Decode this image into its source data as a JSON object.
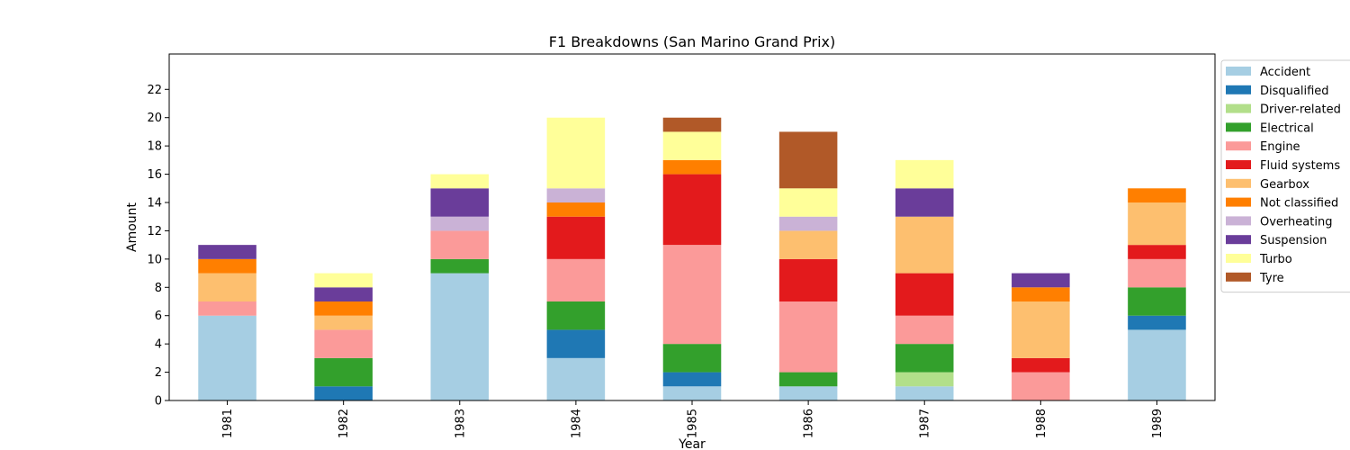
{
  "chart_data": {
    "type": "bar",
    "stacked": true,
    "title": "F1 Breakdowns (San Marino Grand Prix)",
    "xlabel": "Year",
    "ylabel": "Amount",
    "ylim": [
      0,
      24.5
    ],
    "yticks": [
      0,
      2,
      4,
      6,
      8,
      10,
      12,
      14,
      16,
      18,
      20,
      22
    ],
    "categories": [
      "1981",
      "1982",
      "1983",
      "1984",
      "1985",
      "1986",
      "1987",
      "1988",
      "1989"
    ],
    "legend_position": "outside-right-top",
    "grid": false,
    "series": [
      {
        "name": "Accident",
        "color": "#a6cee3",
        "values": [
          6,
          0,
          9,
          3,
          1,
          1,
          1,
          0,
          5
        ]
      },
      {
        "name": "Disqualified",
        "color": "#1f78b4",
        "values": [
          0,
          1,
          0,
          2,
          1,
          0,
          0,
          0,
          1
        ]
      },
      {
        "name": "Driver-related",
        "color": "#b2df8a",
        "values": [
          0,
          0,
          0,
          0,
          0,
          0,
          1,
          0,
          0
        ]
      },
      {
        "name": "Electrical",
        "color": "#33a02c",
        "values": [
          0,
          2,
          1,
          2,
          2,
          1,
          2,
          0,
          2
        ]
      },
      {
        "name": "Engine",
        "color": "#fb9a99",
        "values": [
          1,
          2,
          2,
          3,
          7,
          5,
          2,
          2,
          2
        ]
      },
      {
        "name": "Fluid systems",
        "color": "#e31a1c",
        "values": [
          0,
          0,
          0,
          3,
          5,
          3,
          3,
          1,
          1
        ]
      },
      {
        "name": "Gearbox",
        "color": "#fdbf6f",
        "values": [
          2,
          1,
          0,
          0,
          0,
          2,
          4,
          4,
          3
        ]
      },
      {
        "name": "Not classified",
        "color": "#ff7f00",
        "values": [
          1,
          1,
          0,
          1,
          1,
          0,
          0,
          1,
          1
        ]
      },
      {
        "name": "Overheating",
        "color": "#cab2d6",
        "values": [
          0,
          0,
          1,
          1,
          0,
          1,
          0,
          0,
          0
        ]
      },
      {
        "name": "Suspension",
        "color": "#6a3d9a",
        "values": [
          1,
          1,
          2,
          0,
          0,
          0,
          2,
          1,
          0
        ]
      },
      {
        "name": "Turbo",
        "color": "#ffff99",
        "values": [
          0,
          1,
          1,
          5,
          2,
          2,
          2,
          0,
          0
        ]
      },
      {
        "name": "Tyre",
        "color": "#b15928",
        "values": [
          0,
          0,
          0,
          0,
          1,
          4,
          0,
          0,
          0
        ]
      }
    ]
  }
}
